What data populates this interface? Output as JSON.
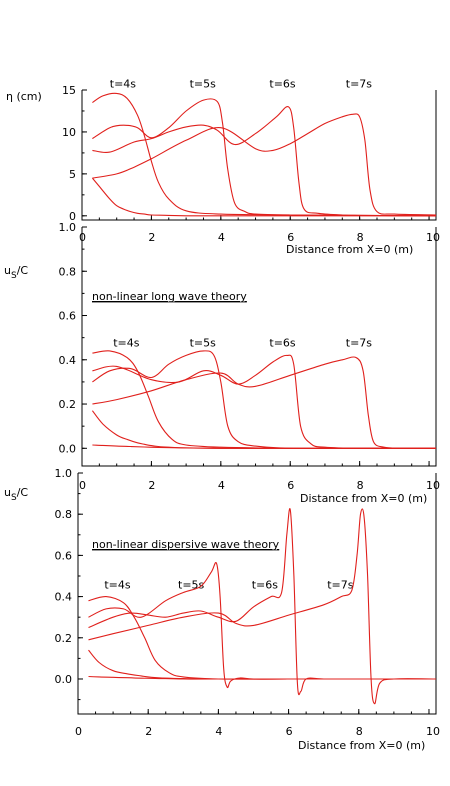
{
  "colors": {
    "curve": "#e0201c",
    "axis": "#000000",
    "background": "#ffffff"
  },
  "chart_data": [
    {
      "type": "line",
      "ylabel": "η (cm)",
      "xlabel": "Distance from X=0 (m)",
      "xlim": [
        0,
        10.2
      ],
      "ylim": [
        -0.5,
        15
      ],
      "xticks": [
        "0",
        "2",
        "4",
        "6",
        "8",
        "10"
      ],
      "yticks": [
        "0",
        "5",
        "10",
        "15"
      ],
      "time_labels": [
        {
          "text": "t=4s",
          "x": 0.8,
          "y": 15.3
        },
        {
          "text": "t=5s",
          "x": 3.1,
          "y": 15.3
        },
        {
          "text": "t=6s",
          "x": 5.4,
          "y": 15.3
        },
        {
          "text": "t=7s",
          "x": 7.6,
          "y": 15.3
        }
      ],
      "series": [
        {
          "x": [
            0.3,
            0.5,
            0.8,
            1.0,
            1.2,
            1.4,
            1.6,
            1.8,
            2.0,
            2.5,
            3.0,
            4.0,
            6.0,
            8.0,
            10.2
          ],
          "y": [
            4.5,
            3.5,
            2.0,
            1.2,
            0.8,
            0.5,
            0.3,
            0.2,
            0.1,
            0.05,
            0.0,
            0.0,
            0.0,
            0.0,
            0.0
          ]
        },
        {
          "x": [
            0.3,
            0.6,
            1.0,
            1.3,
            1.6,
            1.8,
            2.0,
            2.2,
            2.5,
            3.0,
            4.0,
            6.0,
            8.0,
            10.2
          ],
          "y": [
            13.5,
            14.3,
            14.6,
            14.0,
            12.0,
            9.5,
            6.5,
            4.0,
            2.0,
            0.6,
            0.2,
            0.1,
            0.05,
            0.0
          ]
        },
        {
          "x": [
            0.3,
            0.8,
            1.2,
            1.6,
            2.0,
            2.5,
            3.0,
            3.5,
            3.9,
            4.05,
            4.2,
            4.4,
            4.7,
            5.0,
            6.0,
            8.0,
            10.2
          ],
          "y": [
            9.2,
            10.5,
            10.8,
            10.5,
            9.3,
            10.5,
            12.5,
            13.8,
            13.6,
            11.0,
            5.5,
            1.5,
            0.5,
            0.2,
            0.1,
            0.05,
            0.0
          ]
        },
        {
          "x": [
            0.3,
            0.8,
            1.5,
            2.0,
            2.5,
            3.0,
            3.5,
            3.9,
            4.4,
            5.0,
            5.6,
            5.95,
            6.1,
            6.25,
            6.4,
            6.8,
            7.5,
            8.0,
            10.2
          ],
          "y": [
            7.8,
            7.6,
            8.8,
            9.2,
            10.0,
            10.6,
            10.8,
            10.2,
            8.5,
            9.8,
            11.8,
            13.0,
            10.5,
            4.0,
            0.8,
            0.3,
            0.1,
            0.05,
            0.0
          ]
        },
        {
          "x": [
            0.3,
            1.0,
            1.5,
            2.0,
            3.0,
            4.0,
            5.0,
            5.5,
            6.0,
            6.5,
            7.0,
            7.5,
            7.8,
            8.0,
            8.15,
            8.3,
            8.5,
            9.0,
            10.2
          ],
          "y": [
            4.5,
            5.0,
            5.8,
            6.8,
            9.0,
            10.5,
            8.0,
            7.8,
            8.6,
            9.8,
            11.0,
            11.8,
            12.1,
            11.8,
            9.0,
            3.0,
            0.5,
            0.2,
            0.1
          ]
        }
      ]
    },
    {
      "type": "line",
      "ylabel": "uS/C",
      "xlabel": "Distance from X=0 (m)",
      "xlim": [
        0,
        10.2
      ],
      "ylim": [
        -0.08,
        1.0
      ],
      "xticks": [
        "0",
        "2",
        "4",
        "6",
        "8",
        "10"
      ],
      "yticks": [
        "0.0",
        "0.2",
        "0.4",
        "0.6",
        "0.8",
        "1.0"
      ],
      "annotation": "non-linear long wave theory",
      "time_labels": [
        {
          "text": "t=4s",
          "x": 0.9,
          "y": 0.46
        },
        {
          "text": "t=5s",
          "x": 3.1,
          "y": 0.46
        },
        {
          "text": "t=6s",
          "x": 5.4,
          "y": 0.46
        },
        {
          "text": "t=7s",
          "x": 7.6,
          "y": 0.46
        }
      ],
      "series": [
        {
          "x": [
            0.3,
            0.6,
            1.0,
            1.4,
            1.8,
            2.2,
            3.0,
            4.0,
            6.0,
            8.0,
            10.2
          ],
          "y": [
            0.015,
            0.013,
            0.01,
            0.008,
            0.006,
            0.004,
            0.002,
            0.0,
            0.0,
            0.0,
            0.0
          ]
        },
        {
          "x": [
            0.3,
            0.6,
            1.0,
            1.3,
            1.6,
            1.8,
            2.0,
            2.2,
            2.5,
            3.0,
            4.0,
            6.0,
            8.0,
            10.2
          ],
          "y": [
            0.17,
            0.11,
            0.06,
            0.04,
            0.025,
            0.018,
            0.012,
            0.008,
            0.005,
            0.002,
            0.0,
            0.0,
            0.0,
            0.0
          ]
        },
        {
          "x": [
            0.3,
            0.8,
            1.3,
            1.6,
            1.9,
            2.2,
            2.6,
            3.0,
            4.0,
            6.0,
            8.0,
            10.2
          ],
          "y": [
            0.43,
            0.44,
            0.41,
            0.35,
            0.24,
            0.12,
            0.04,
            0.015,
            0.005,
            0.0,
            0.0,
            0.0
          ]
        },
        {
          "x": [
            0.3,
            0.8,
            1.4,
            2.0,
            2.5,
            3.0,
            3.5,
            3.8,
            4.0,
            4.2,
            4.5,
            5.0,
            6.0,
            8.0,
            10.2
          ],
          "y": [
            0.3,
            0.35,
            0.36,
            0.32,
            0.38,
            0.42,
            0.44,
            0.42,
            0.3,
            0.1,
            0.03,
            0.01,
            0.0,
            0.0,
            0.0
          ]
        },
        {
          "x": [
            0.3,
            1.0,
            2.0,
            2.8,
            3.5,
            4.0,
            4.5,
            5.0,
            5.5,
            5.9,
            6.1,
            6.3,
            6.6,
            7.0,
            8.0,
            10.2
          ],
          "y": [
            0.35,
            0.37,
            0.31,
            0.3,
            0.35,
            0.33,
            0.29,
            0.33,
            0.39,
            0.42,
            0.38,
            0.1,
            0.02,
            0.005,
            0.0,
            0.0
          ]
        },
        {
          "x": [
            0.3,
            1.0,
            2.0,
            3.0,
            4.0,
            4.5,
            5.0,
            6.0,
            7.0,
            7.5,
            7.9,
            8.1,
            8.25,
            8.4,
            8.7,
            9.2,
            10.2
          ],
          "y": [
            0.2,
            0.22,
            0.26,
            0.31,
            0.34,
            0.29,
            0.28,
            0.33,
            0.38,
            0.4,
            0.41,
            0.35,
            0.15,
            0.03,
            0.005,
            0.0,
            0.0
          ]
        }
      ]
    },
    {
      "type": "line",
      "ylabel": "uS/C",
      "xlabel": "Distance from X=0 (m)",
      "xlim": [
        0,
        10.2
      ],
      "ylim": [
        -0.17,
        1.0
      ],
      "xticks": [
        "0",
        "2",
        "4",
        "6",
        "8",
        "10"
      ],
      "yticks": [
        "0.0",
        "0.2",
        "0.4",
        "0.6",
        "0.8",
        "1.0"
      ],
      "annotation": "non-linear dispersive wave theory",
      "time_labels": [
        {
          "text": "t=4s",
          "x": 0.75,
          "y": 0.44
        },
        {
          "text": "t=5s",
          "x": 2.85,
          "y": 0.44
        },
        {
          "text": "t=6s",
          "x": 4.95,
          "y": 0.44
        },
        {
          "text": "t=7s",
          "x": 7.1,
          "y": 0.44
        }
      ],
      "series": [
        {
          "x": [
            0.3,
            0.6,
            1.0,
            1.4,
            1.8,
            2.2,
            3.0,
            4.0,
            6.0,
            8.0,
            10.2
          ],
          "y": [
            0.012,
            0.01,
            0.008,
            0.006,
            0.004,
            0.003,
            0.0,
            0.0,
            0.0,
            0.0,
            0.0
          ]
        },
        {
          "x": [
            0.3,
            0.6,
            1.0,
            1.4,
            1.8,
            2.0,
            2.4,
            3.0,
            4.0,
            6.0,
            8.0,
            10.2
          ],
          "y": [
            0.14,
            0.08,
            0.04,
            0.025,
            0.015,
            0.01,
            0.005,
            0.002,
            0.0,
            0.0,
            0.0,
            0.0
          ]
        },
        {
          "x": [
            0.3,
            0.8,
            1.3,
            1.6,
            1.9,
            2.2,
            2.6,
            3.0,
            4.0,
            6.0,
            8.0,
            10.2
          ],
          "y": [
            0.38,
            0.4,
            0.37,
            0.3,
            0.2,
            0.09,
            0.03,
            0.01,
            0.0,
            0.0,
            0.0,
            0.0
          ]
        },
        {
          "x": [
            0.3,
            0.8,
            1.3,
            1.8,
            2.5,
            3.0,
            3.5,
            3.8,
            3.95,
            4.05,
            4.15,
            4.25,
            4.35,
            4.6,
            5.0,
            6.0,
            8.0,
            10.2
          ],
          "y": [
            0.3,
            0.34,
            0.34,
            0.3,
            0.38,
            0.42,
            0.45,
            0.52,
            0.56,
            0.4,
            0.05,
            -0.04,
            -0.01,
            0.005,
            0.0,
            0.0,
            0.0,
            0.0
          ]
        },
        {
          "x": [
            0.3,
            1.0,
            1.5,
            2.0,
            2.5,
            3.0,
            3.5,
            4.0,
            4.5,
            5.0,
            5.5,
            5.8,
            5.95,
            6.05,
            6.15,
            6.25,
            6.35,
            6.5,
            7.0,
            8.0,
            10.2
          ],
          "y": [
            0.25,
            0.3,
            0.32,
            0.31,
            0.3,
            0.32,
            0.33,
            0.3,
            0.28,
            0.35,
            0.4,
            0.42,
            0.7,
            0.82,
            0.5,
            -0.02,
            -0.06,
            0.0,
            0.0,
            0.0,
            0.0
          ]
        },
        {
          "x": [
            0.3,
            1.0,
            2.0,
            3.0,
            4.0,
            4.5,
            5.0,
            6.0,
            7.0,
            7.5,
            7.8,
            7.95,
            8.05,
            8.15,
            8.25,
            8.35,
            8.45,
            8.6,
            9.0,
            10.2
          ],
          "y": [
            0.19,
            0.22,
            0.26,
            0.3,
            0.32,
            0.27,
            0.26,
            0.31,
            0.36,
            0.4,
            0.43,
            0.6,
            0.8,
            0.79,
            0.5,
            0.0,
            -0.12,
            -0.02,
            0.0,
            0.0
          ]
        }
      ]
    }
  ]
}
